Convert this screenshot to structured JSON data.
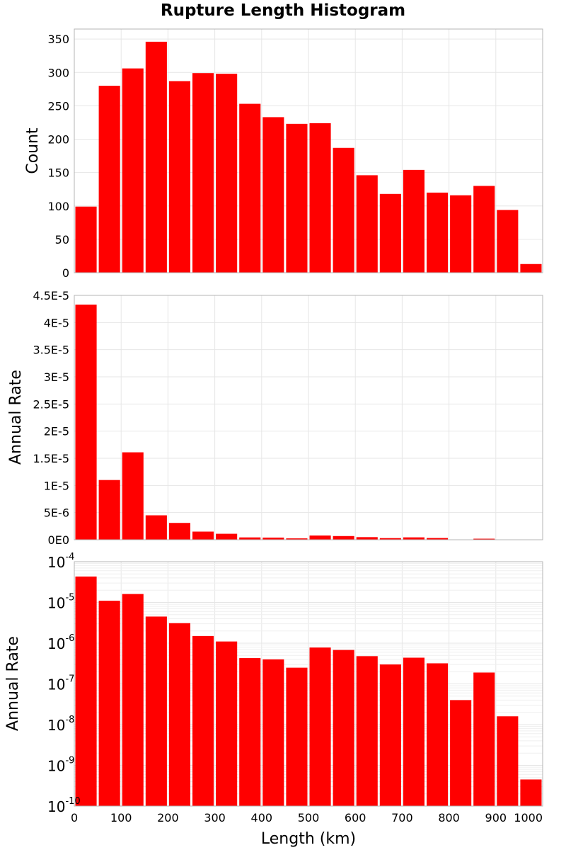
{
  "chart_data": [
    {
      "type": "bar",
      "title": "Rupture Length Histogram",
      "xlabel": "",
      "ylabel": "Count",
      "bin_width": 50,
      "x": [
        25,
        75,
        125,
        175,
        225,
        275,
        325,
        375,
        425,
        475,
        525,
        575,
        625,
        675,
        725,
        775,
        825,
        875,
        925,
        975
      ],
      "values": [
        99,
        280,
        306,
        346,
        287,
        299,
        298,
        253,
        233,
        223,
        224,
        187,
        146,
        118,
        154,
        120,
        116,
        130,
        94,
        13
      ],
      "xlim": [
        0,
        1000
      ],
      "ylim": [
        0,
        365
      ],
      "yticks": [
        0,
        50,
        100,
        150,
        200,
        250,
        300,
        350
      ],
      "ytick_labels": [
        "0",
        "50",
        "100",
        "150",
        "200",
        "250",
        "300",
        "350"
      ],
      "grid": true
    },
    {
      "type": "bar",
      "xlabel": "",
      "ylabel": "Annual Rate",
      "bin_width": 50,
      "x": [
        25,
        75,
        125,
        175,
        225,
        275,
        325,
        375,
        425,
        475,
        525,
        575,
        625,
        675,
        725,
        775,
        825,
        875,
        925,
        975
      ],
      "values": [
        4.33e-05,
        1.1e-05,
        1.61e-05,
        4.5e-06,
        3.1e-06,
        1.5e-06,
        1.1e-06,
        4.3e-07,
        4e-07,
        2.5e-07,
        7.8e-07,
        6.8e-07,
        4.8e-07,
        3e-07,
        4.4e-07,
        3.2e-07,
        4e-08,
        1.9e-07,
        1.6e-08,
        4.5e-10
      ],
      "xlim": [
        0,
        1000
      ],
      "ylim": [
        0,
        4.5e-05
      ],
      "yticks": [
        0,
        5e-06,
        1e-05,
        1.5e-05,
        2e-05,
        2.5e-05,
        3e-05,
        3.5e-05,
        4e-05,
        4.5e-05
      ],
      "ytick_labels": [
        "0E0",
        "5E-6",
        "1E-5",
        "1.5E-5",
        "2E-5",
        "2.5E-5",
        "3E-5",
        "3.5E-5",
        "4E-5",
        "4.5E-5"
      ],
      "grid": true
    },
    {
      "type": "bar",
      "xlabel": "Length (km)",
      "ylabel": "Annual Rate",
      "yscale": "log",
      "bin_width": 50,
      "x": [
        25,
        75,
        125,
        175,
        225,
        275,
        325,
        375,
        425,
        475,
        525,
        575,
        625,
        675,
        725,
        775,
        825,
        875,
        925,
        975
      ],
      "values": [
        4.33e-05,
        1.1e-05,
        1.61e-05,
        4.5e-06,
        3.1e-06,
        1.5e-06,
        1.1e-06,
        4.3e-07,
        4e-07,
        2.5e-07,
        7.8e-07,
        6.8e-07,
        4.8e-07,
        3e-07,
        4.4e-07,
        3.2e-07,
        4e-08,
        1.9e-07,
        1.6e-08,
        4.5e-10
      ],
      "xlim": [
        0,
        1000
      ],
      "ylim": [
        1e-10,
        0.0001
      ],
      "yticks": [
        1e-10,
        1e-09,
        1e-08,
        1e-07,
        1e-06,
        1e-05,
        0.0001
      ],
      "ytick_labels": [
        {
          "base": "10",
          "exp": "-10"
        },
        {
          "base": "10",
          "exp": "-9"
        },
        {
          "base": "10",
          "exp": "-8"
        },
        {
          "base": "10",
          "exp": "-7"
        },
        {
          "base": "10",
          "exp": "-6"
        },
        {
          "base": "10",
          "exp": "-5"
        },
        {
          "base": "10",
          "exp": "-4"
        }
      ],
      "xticks": [
        0,
        100,
        200,
        300,
        400,
        500,
        600,
        700,
        800,
        900,
        1000
      ],
      "xtick_labels": [
        "0",
        "100",
        "200",
        "300",
        "400",
        "500",
        "600",
        "700",
        "800",
        "900",
        "1000"
      ],
      "grid": true
    }
  ]
}
